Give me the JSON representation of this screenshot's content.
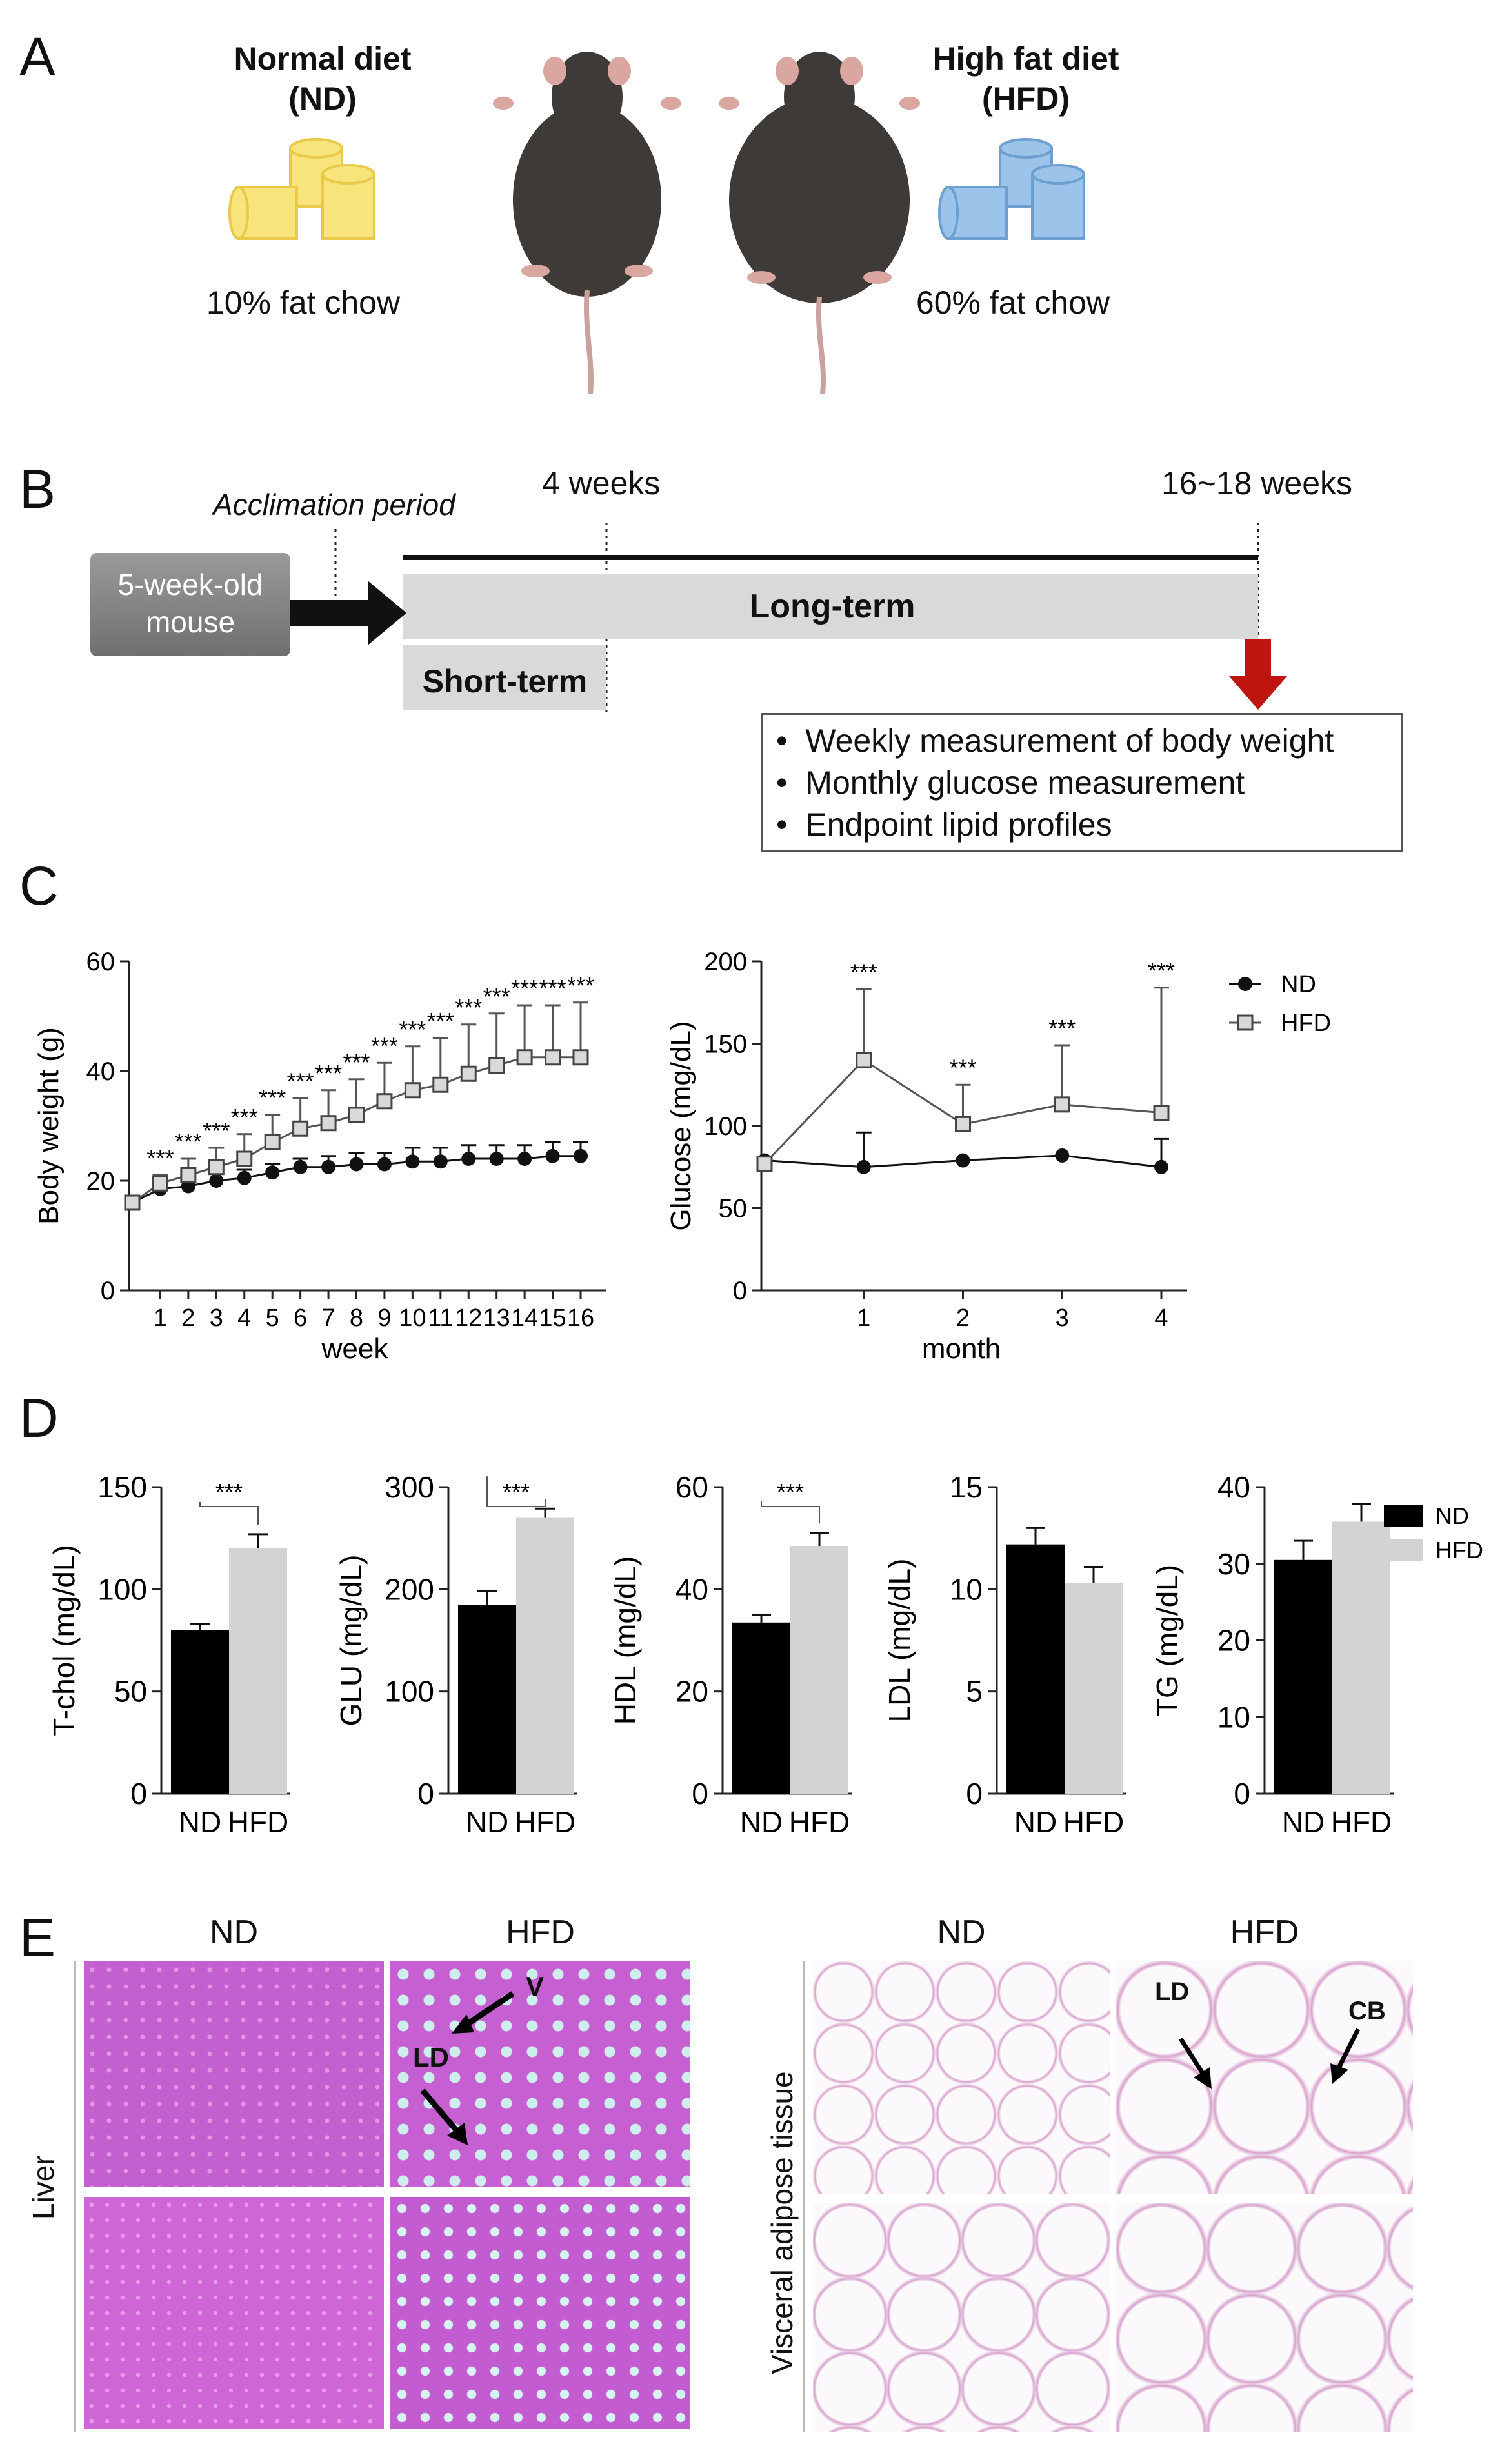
{
  "panelA": {
    "letter": "A",
    "nd_title_line1": "Normal diet",
    "nd_title_line2": "(ND)",
    "nd_caption": "10% fat chow",
    "hfd_title_line1": "High fat diet",
    "hfd_title_line2": "(HFD)",
    "hfd_caption": "60% fat chow",
    "colors": {
      "nd_chow": "#f7e57c",
      "hfd_chow": "#9cc4ea",
      "mouse": "#3d3a38"
    }
  },
  "panelB": {
    "letter": "B",
    "acclimation": "Acclimation period",
    "four_weeks": "4 weeks",
    "endpoint": "16~18 weeks",
    "mouse_box_line1": "5-week-old",
    "mouse_box_line2": "mouse",
    "long_term": "Long-term",
    "short_term": "Short-term",
    "bullets": [
      "Weekly measurement of body weight",
      "Monthly glucose measurement",
      "Endpoint lipid profiles"
    ],
    "colors": {
      "arrow": "#c0150f",
      "bar": "#d9d9d9"
    }
  },
  "panelC": {
    "letter": "C",
    "legend": [
      "ND",
      "HFD"
    ]
  },
  "panelD": {
    "letter": "D",
    "legend": [
      "ND",
      "HFD"
    ]
  },
  "panelE": {
    "letter": "E",
    "liver_col1": "ND",
    "liver_col2": "HFD",
    "liver_row": "Liver",
    "label_v": "V",
    "label_ld": "LD",
    "adipose_col1": "ND",
    "adipose_col2": "HFD",
    "adipose_row": "Visceral adipose tissue",
    "label_ld2": "LD",
    "label_cb": "CB",
    "colors": {
      "liver_bg": "#d16ad6",
      "adipose_bg": "#f8f5f8"
    }
  },
  "chart_data": [
    {
      "type": "line",
      "ylabel": "Body weight (g)",
      "xlabel": "week",
      "x": [
        0,
        1,
        2,
        3,
        4,
        5,
        6,
        7,
        8,
        9,
        10,
        11,
        12,
        13,
        14,
        15,
        16
      ],
      "xticks": [
        "1",
        "2",
        "3",
        "4",
        "5",
        "6",
        "7",
        "8",
        "9",
        "10",
        "11",
        "12",
        "13",
        "14",
        "15",
        "16"
      ],
      "ylim": [
        0,
        60
      ],
      "yticks": [
        "0",
        "20",
        "40",
        "60"
      ],
      "series": [
        {
          "name": "ND",
          "values": [
            16,
            18.5,
            19,
            20,
            20.5,
            21.5,
            22.5,
            22.5,
            23,
            23,
            23.5,
            23.5,
            24,
            24,
            24,
            24.5,
            24.5
          ],
          "err": [
            1,
            1,
            1,
            1.5,
            1.5,
            1.5,
            1.5,
            2,
            2,
            2,
            2.5,
            2.5,
            2.5,
            2.5,
            2.5,
            2.5,
            2.5
          ]
        },
        {
          "name": "HFD",
          "values": [
            16,
            19.5,
            21,
            22.5,
            24,
            27,
            29.5,
            30.5,
            32,
            34.5,
            36.5,
            37.5,
            39.5,
            41,
            42.5,
            42.5,
            42.5
          ],
          "err": [
            1,
            1.5,
            3,
            3.5,
            4.5,
            5,
            5.5,
            6,
            6.5,
            7,
            8,
            8.5,
            9,
            9.5,
            9.5,
            9.5,
            10
          ]
        }
      ],
      "significance": "***",
      "significance_weeks": [
        1,
        2,
        3,
        4,
        5,
        6,
        7,
        8,
        9,
        10,
        11,
        12,
        13,
        14,
        15,
        16
      ]
    },
    {
      "type": "line",
      "ylabel": "Glucose (mg/dL)",
      "xlabel": "month",
      "x": [
        0,
        1,
        2,
        3,
        4
      ],
      "xticks": [
        "1",
        "2",
        "3",
        "4"
      ],
      "ylim": [
        0,
        200
      ],
      "yticks": [
        "0",
        "50",
        "100",
        "150",
        "200"
      ],
      "series": [
        {
          "name": "ND",
          "values": [
            79,
            75,
            79,
            82,
            75
          ],
          "err": [
            0,
            21,
            0,
            0,
            17
          ]
        },
        {
          "name": "HFD",
          "values": [
            77,
            140,
            101,
            113,
            108
          ],
          "err": [
            0,
            43,
            24,
            36,
            76
          ]
        }
      ],
      "significance": "***",
      "significance_months": [
        1,
        2,
        3,
        4
      ]
    },
    {
      "type": "bar",
      "ylabel": "T-chol (mg/dL)",
      "categories": [
        "ND",
        "HFD"
      ],
      "values": [
        80,
        120
      ],
      "err": [
        3,
        7
      ],
      "ylim": [
        0,
        150
      ],
      "yticks": [
        "0",
        "50",
        "100",
        "150"
      ],
      "significance": "***"
    },
    {
      "type": "bar",
      "ylabel": "GLU (mg/dL)",
      "categories": [
        "ND",
        "HFD"
      ],
      "values": [
        185,
        270
      ],
      "err": [
        13,
        9
      ],
      "ylim": [
        0,
        300
      ],
      "yticks": [
        "0",
        "100",
        "200",
        "300"
      ],
      "significance": "***"
    },
    {
      "type": "bar",
      "ylabel": "HDL (mg/dL)",
      "categories": [
        "ND",
        "HFD"
      ],
      "values": [
        33.5,
        48.5
      ],
      "err": [
        1.5,
        2.5
      ],
      "ylim": [
        0,
        60
      ],
      "yticks": [
        "0",
        "20",
        "40",
        "60"
      ],
      "significance": "***"
    },
    {
      "type": "bar",
      "ylabel": "LDL (mg/dL)",
      "categories": [
        "ND",
        "HFD"
      ],
      "values": [
        12.2,
        10.3
      ],
      "err": [
        0.8,
        0.8
      ],
      "ylim": [
        0,
        15
      ],
      "yticks": [
        "0",
        "5",
        "10",
        "15"
      ],
      "significance": ""
    },
    {
      "type": "bar",
      "ylabel": "TG (mg/dL)",
      "categories": [
        "ND",
        "HFD"
      ],
      "values": [
        30.5,
        35.5
      ],
      "err": [
        2.5,
        2.3
      ],
      "ylim": [
        0,
        40
      ],
      "yticks": [
        "0",
        "10",
        "20",
        "30",
        "40"
      ],
      "significance": ""
    }
  ]
}
